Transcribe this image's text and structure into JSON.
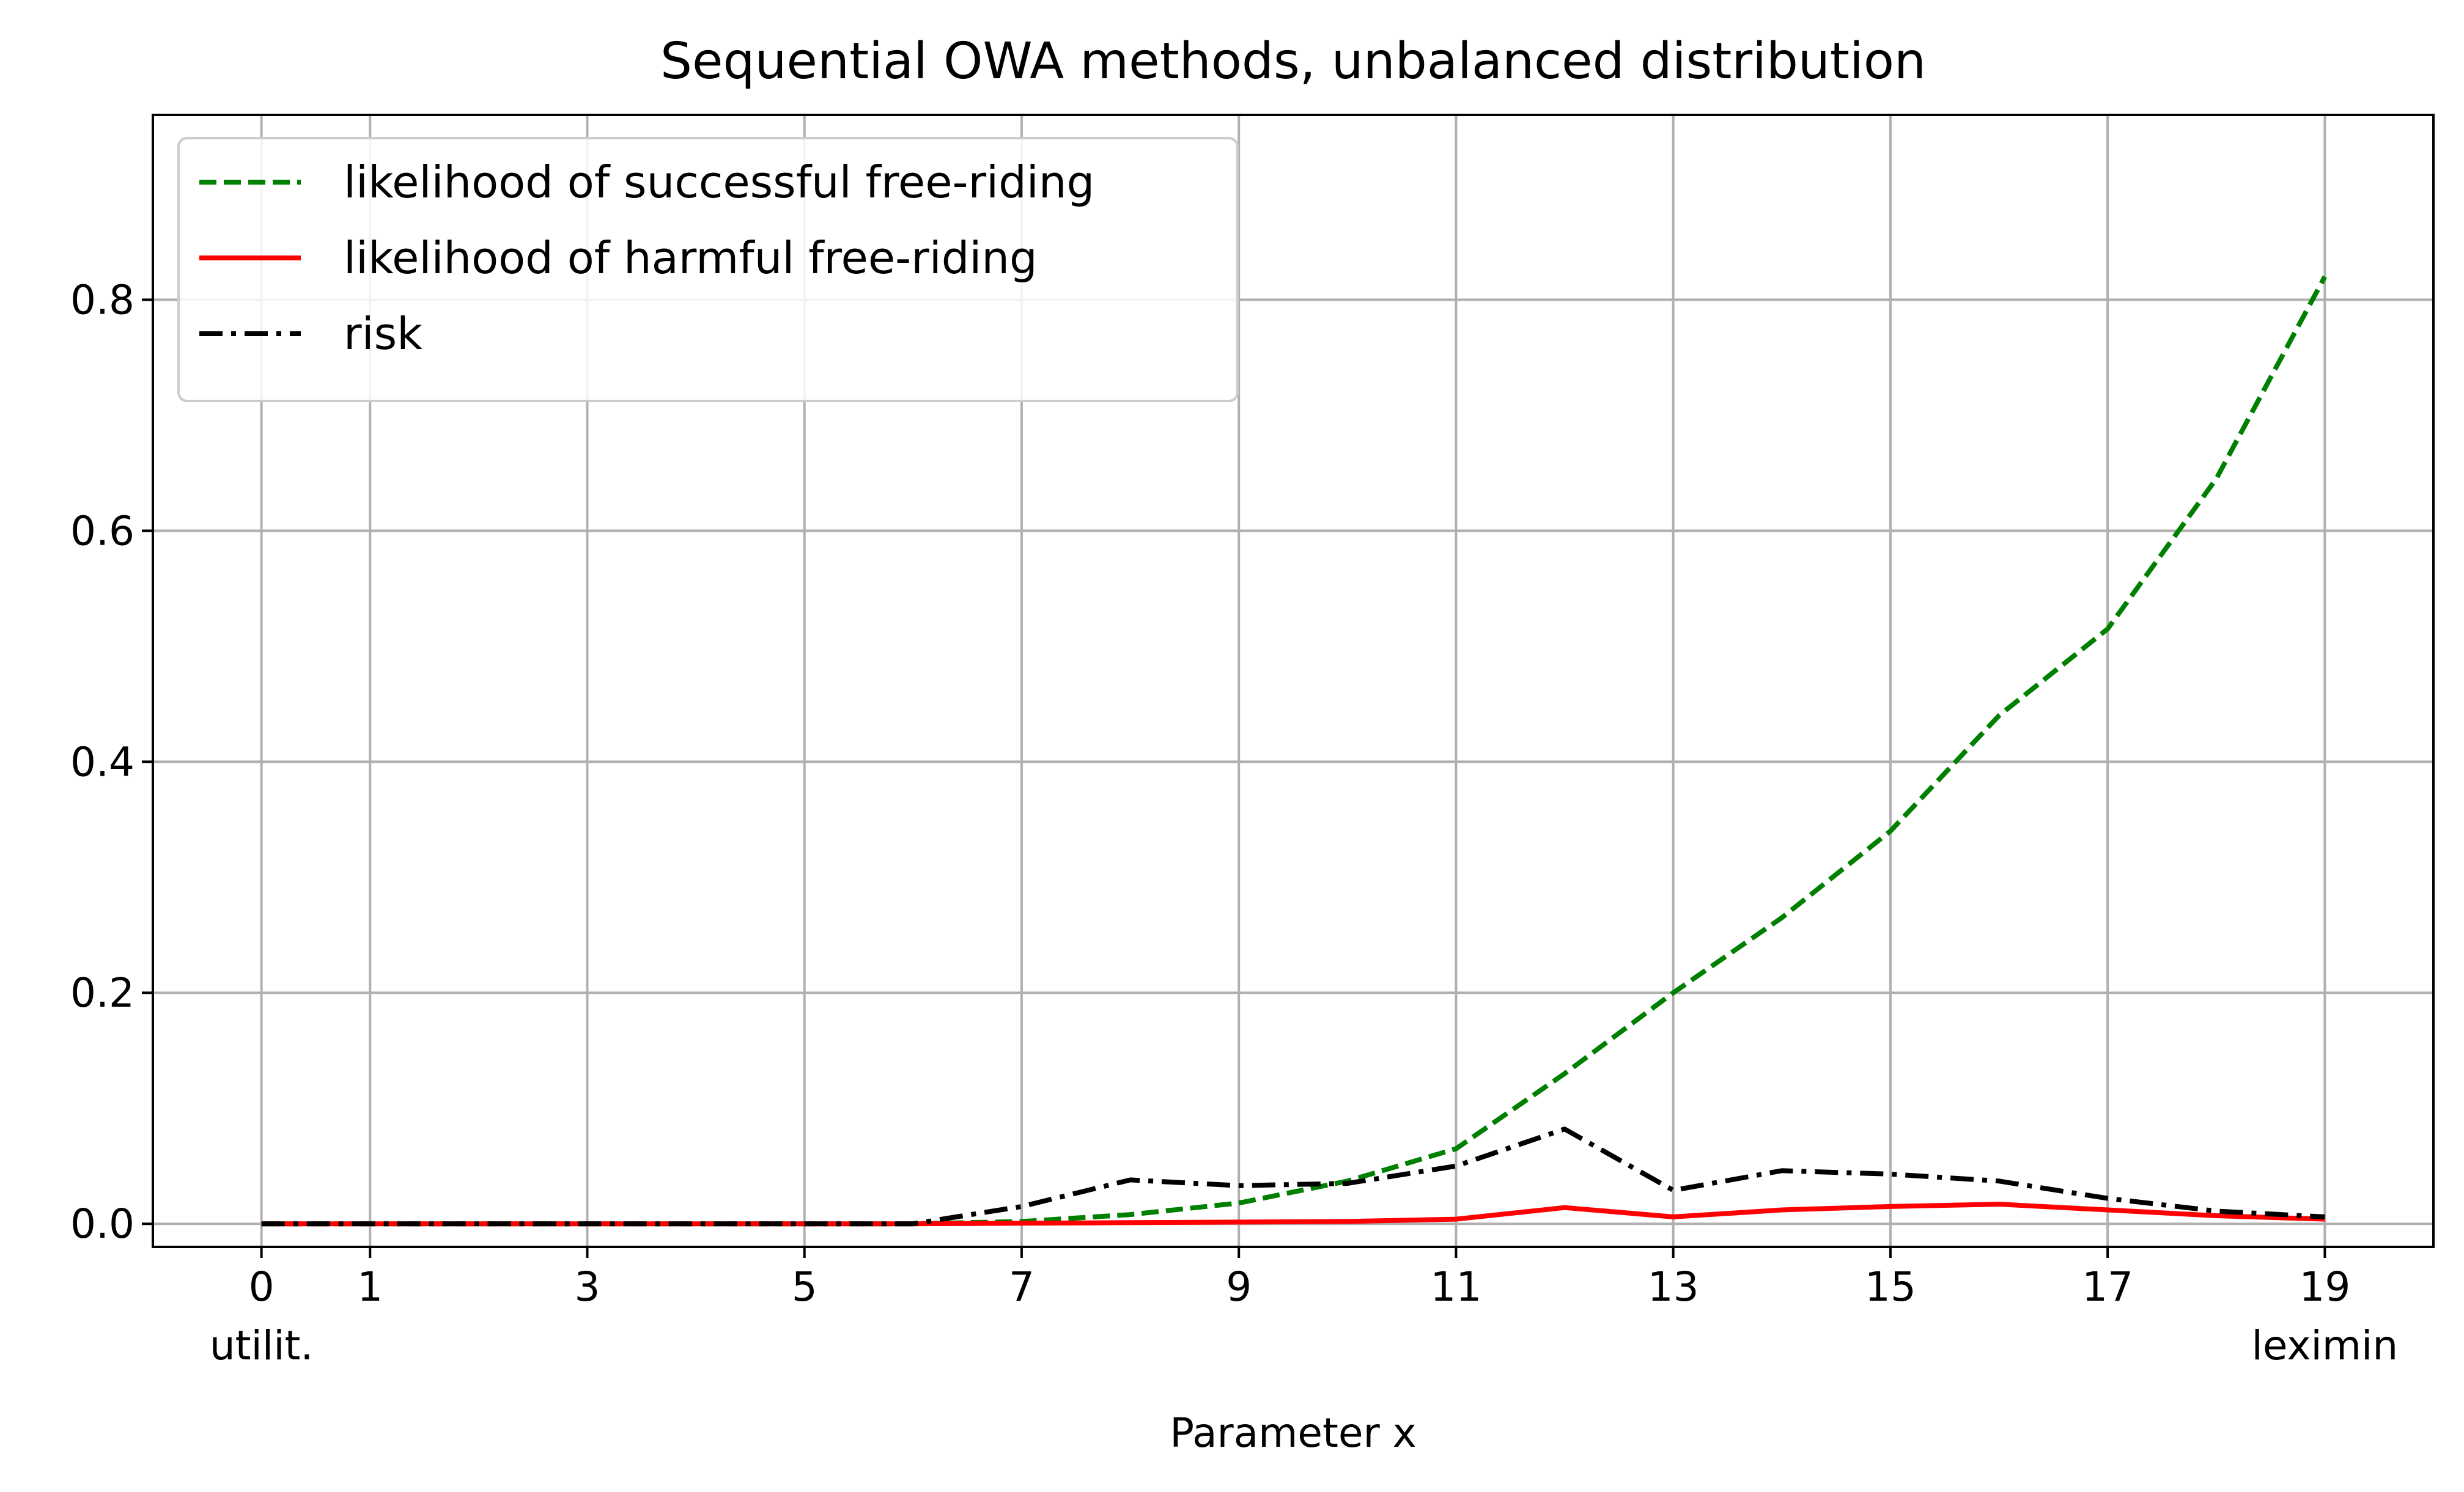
{
  "chart_data": {
    "type": "line",
    "title": "Sequential OWA methods, unbalanced distribution",
    "xlabel": "Parameter x",
    "ylabel": "",
    "xlim": [
      -1,
      20
    ],
    "ylim": [
      -0.02,
      0.96
    ],
    "x_ticks": [
      0,
      1,
      3,
      5,
      7,
      9,
      11,
      13,
      15,
      17,
      19
    ],
    "x_tick_labels": [
      "0",
      "1",
      "3",
      "5",
      "7",
      "9",
      "11",
      "13",
      "15",
      "17",
      "19"
    ],
    "x_tick_sublabels": [
      {
        "x": 0,
        "text": "utilit."
      },
      {
        "x": 19,
        "text": "leximin"
      }
    ],
    "y_ticks": [
      0.0,
      0.2,
      0.4,
      0.6,
      0.8
    ],
    "y_tick_labels": [
      "0.0",
      "0.2",
      "0.4",
      "0.6",
      "0.8"
    ],
    "grid": true,
    "legend_position": "top-left",
    "x": [
      0,
      1,
      2,
      3,
      4,
      5,
      6,
      7,
      8,
      9,
      10,
      11,
      12,
      13,
      14,
      15,
      16,
      17,
      18,
      19
    ],
    "series": [
      {
        "name": "likelihood of successful free-riding",
        "color": "#008000",
        "style": "dashed",
        "values": [
          0,
          0,
          0,
          0,
          0,
          0,
          0,
          0.002,
          0.008,
          0.018,
          0.037,
          0.065,
          0.13,
          0.2,
          0.265,
          0.34,
          0.44,
          0.515,
          0.645,
          0.82
        ]
      },
      {
        "name": "likelihood of harmful free-riding",
        "color": "#ff0000",
        "style": "solid",
        "values": [
          0,
          0,
          0,
          0,
          0,
          0,
          0,
          0.0005,
          0.001,
          0.0015,
          0.002,
          0.004,
          0.014,
          0.006,
          0.012,
          0.015,
          0.017,
          0.012,
          0.007,
          0.004
        ]
      },
      {
        "name": "risk",
        "color": "#000000",
        "style": "dashdot",
        "values": [
          0,
          0,
          0,
          0,
          0,
          0,
          0,
          0.015,
          0.038,
          0.033,
          0.035,
          0.05,
          0.082,
          0.029,
          0.046,
          0.043,
          0.037,
          0.022,
          0.011,
          0.006
        ]
      }
    ]
  }
}
